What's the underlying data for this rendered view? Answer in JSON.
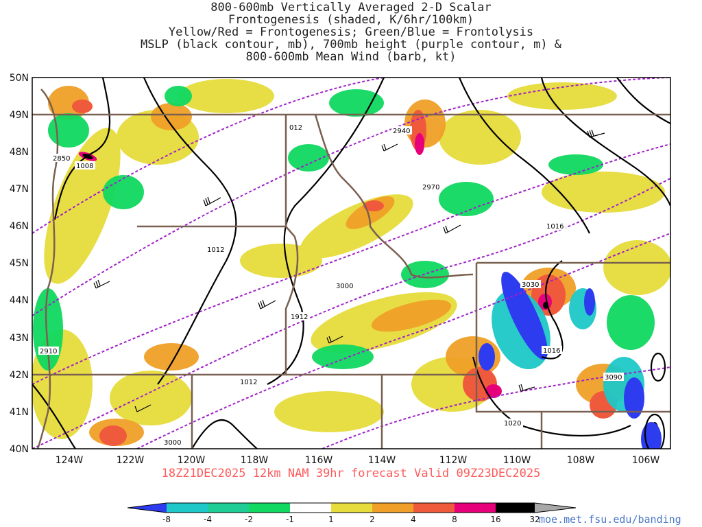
{
  "title_lines": [
    "800-600mb Vertically Averaged 2-D Scalar",
    "Frontogenesis (shaded, K/6hr/100km)",
    "Yellow/Red = Frontogenesis;  Green/Blue = Frontolysis",
    "MSLP (black contour, mb), 700mb height (purple contour, m) &",
    "800-600mb Mean Wind (barb, kt)"
  ],
  "latitude_labels": [
    "50N",
    "49N",
    "48N",
    "47N",
    "46N",
    "45N",
    "44N",
    "43N",
    "42N",
    "41N",
    "40N"
  ],
  "longitude_labels": [
    "124W",
    "122W",
    "120W",
    "118W",
    "116W",
    "114W",
    "112W",
    "110W",
    "108W",
    "106W"
  ],
  "contour_labels": {
    "mslp": [
      "012",
      "1008",
      "1012",
      "1912",
      "1012",
      "1016",
      "1016",
      "1020"
    ],
    "height_700mb": [
      "2850",
      "2940",
      "2970",
      "3000",
      "3030",
      "3090",
      "2910",
      "3000"
    ]
  },
  "valid_line": "18Z21DEC2025 12km NAM 39hr forecast Valid 09Z23DEC2025",
  "colorbar": {
    "labels": [
      "-8",
      "-4",
      "-2",
      "-1",
      "1",
      "2",
      "4",
      "8",
      "16",
      "32"
    ],
    "colors": [
      "#2e3cf0",
      "#1ec8c8",
      "#1ecc96",
      "#10d860",
      "#3ce636",
      "#ffffff",
      "#e6dc3c",
      "#f0a028",
      "#f05a3c",
      "#ff3c64",
      "#e6007a",
      "#000000",
      "#a8a8a8"
    ]
  },
  "url": "moe.met.fsu.edu/banding",
  "colors": {
    "mslp_contour": "#000000",
    "height_contour": "#a020c8",
    "state_border": "#7a6050",
    "frontogenesis_yellow": "#e6dc3c",
    "frontogenesis_orange": "#f0a028",
    "frontogenesis_red": "#f05a3c",
    "frontogenesis_magenta": "#e6007a",
    "frontolysis_green": "#10d860",
    "frontolysis_cyan": "#1ec8c8",
    "frontolysis_blue": "#2e3cf0"
  }
}
